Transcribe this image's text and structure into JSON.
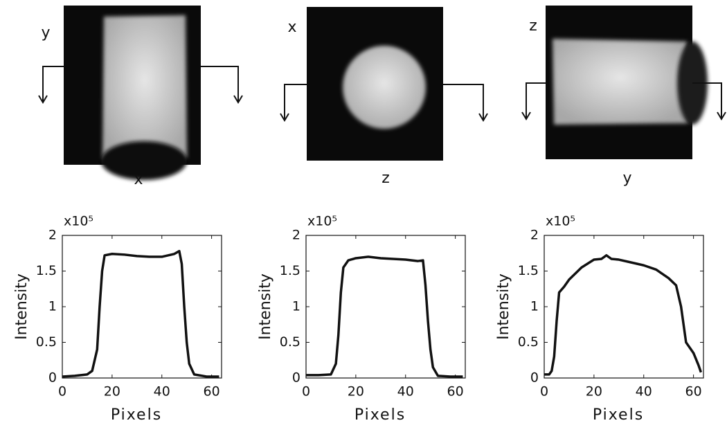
{
  "images": [
    {
      "ylabel": "y",
      "xlabel": "x"
    },
    {
      "ylabel": "x",
      "xlabel": "z"
    },
    {
      "ylabel": "z",
      "xlabel": "y"
    }
  ],
  "chart_data": [
    {
      "type": "line",
      "scale_label": "x10⁵",
      "ylabel": "Intensity",
      "xlabel": "Pixels",
      "xlim": [
        0,
        64
      ],
      "xticks": [
        0,
        20,
        40,
        60
      ],
      "ylim": [
        0,
        2
      ],
      "yticks": [
        0,
        0.5,
        1,
        1.5,
        2
      ],
      "series": [
        {
          "color": "#111111",
          "x": [
            0,
            5,
            10,
            12,
            14,
            15,
            16,
            17,
            20,
            25,
            30,
            35,
            40,
            45,
            47,
            48,
            49,
            50,
            51,
            53,
            58,
            63
          ],
          "values": [
            0.02,
            0.03,
            0.05,
            0.1,
            0.4,
            1.0,
            1.5,
            1.72,
            1.74,
            1.73,
            1.71,
            1.7,
            1.7,
            1.74,
            1.78,
            1.6,
            1.0,
            0.5,
            0.2,
            0.05,
            0.02,
            0.02
          ]
        }
      ]
    },
    {
      "type": "line",
      "scale_label": "x10⁵",
      "ylabel": "Intensity",
      "xlabel": "Pixels",
      "xlim": [
        0,
        64
      ],
      "xticks": [
        0,
        20,
        40,
        60
      ],
      "ylim": [
        0,
        2
      ],
      "yticks": [
        0,
        0.5,
        1,
        1.5,
        2
      ],
      "series": [
        {
          "color": "#111111",
          "x": [
            0,
            5,
            10,
            12,
            13,
            14,
            15,
            17,
            20,
            25,
            30,
            35,
            40,
            45,
            47,
            48,
            49,
            50,
            51,
            53,
            58,
            63
          ],
          "values": [
            0.04,
            0.04,
            0.05,
            0.2,
            0.6,
            1.2,
            1.55,
            1.65,
            1.68,
            1.7,
            1.68,
            1.67,
            1.66,
            1.64,
            1.65,
            1.3,
            0.8,
            0.4,
            0.15,
            0.03,
            0.02,
            0.02
          ]
        }
      ]
    },
    {
      "type": "line",
      "scale_label": "x10⁵",
      "ylabel": "Intensity",
      "xlabel": "Pixels",
      "xlim": [
        0,
        64
      ],
      "xticks": [
        0,
        20,
        40,
        60
      ],
      "ylim": [
        0,
        2
      ],
      "yticks": [
        0,
        0.5,
        1,
        1.5,
        2
      ],
      "series": [
        {
          "color": "#111111",
          "x": [
            0,
            2,
            3,
            4,
            5,
            6,
            8,
            10,
            15,
            20,
            23,
            25,
            27,
            30,
            35,
            40,
            45,
            50,
            53,
            55,
            57,
            60,
            62,
            63
          ],
          "values": [
            0.05,
            0.05,
            0.1,
            0.3,
            0.8,
            1.2,
            1.28,
            1.38,
            1.55,
            1.66,
            1.67,
            1.72,
            1.67,
            1.66,
            1.62,
            1.58,
            1.52,
            1.4,
            1.3,
            1.0,
            0.5,
            0.35,
            0.18,
            0.08
          ]
        }
      ]
    }
  ]
}
